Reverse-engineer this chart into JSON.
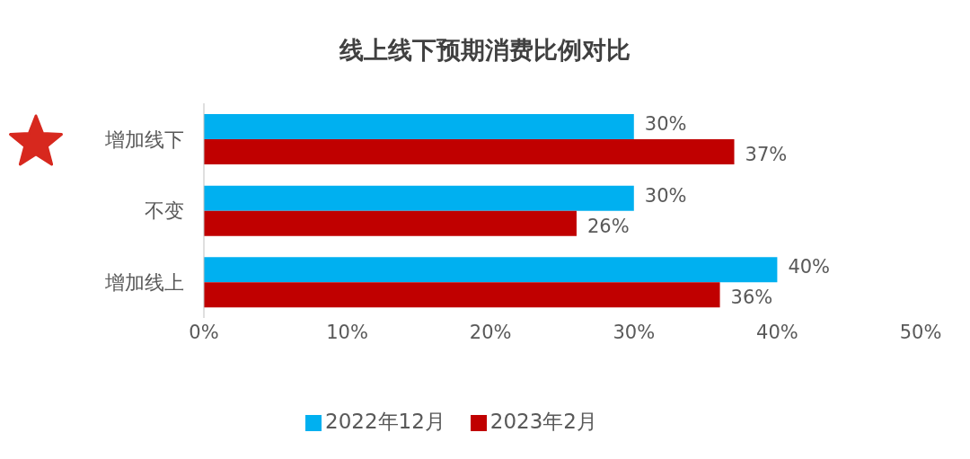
{
  "chart_data": {
    "type": "bar",
    "orientation": "horizontal",
    "title": "线上线下预期消费比例对比",
    "categories": [
      "增加线下",
      "不变",
      "增加线上"
    ],
    "series": [
      {
        "name": "2022年12月",
        "color": "#00b0f0",
        "values": [
          30,
          30,
          40
        ],
        "value_labels": [
          "30%",
          "30%",
          "40%"
        ]
      },
      {
        "name": "2023年2月",
        "color": "#c00000",
        "values": [
          37,
          26,
          36
        ],
        "value_labels": [
          "37%",
          "26%",
          "36%"
        ]
      }
    ],
    "xlim": [
      0,
      50
    ],
    "xticks": [
      {
        "value": 0,
        "label": "0%"
      },
      {
        "value": 10,
        "label": "10%"
      },
      {
        "value": 20,
        "label": "20%"
      },
      {
        "value": 30,
        "label": "30%"
      },
      {
        "value": 40,
        "label": "40%"
      },
      {
        "value": 50,
        "label": "50%"
      }
    ],
    "grid": false,
    "legend": "bottom"
  }
}
